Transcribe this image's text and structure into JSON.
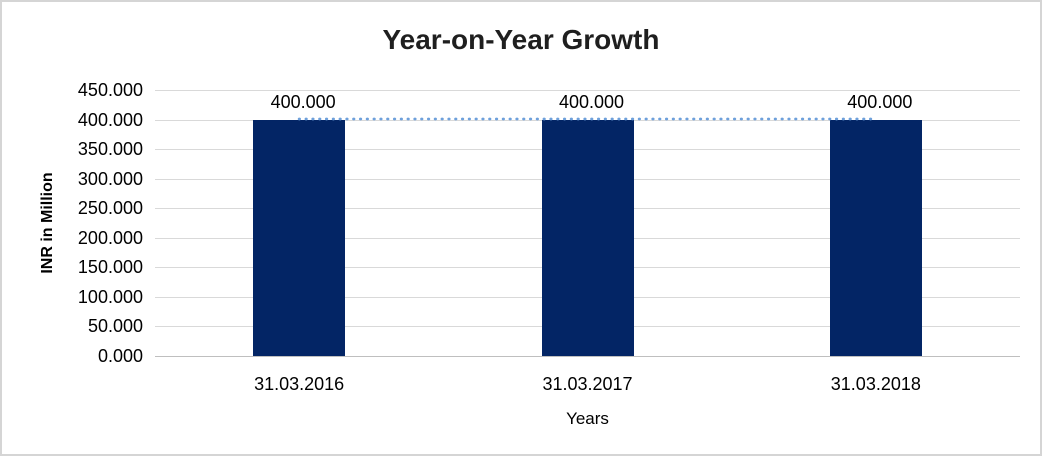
{
  "chart_data": {
    "type": "bar",
    "title": "Year-on-Year Growth",
    "xlabel": "Years",
    "ylabel": "INR in Million",
    "categories": [
      "31.03.2016",
      "31.03.2017",
      "31.03.2018"
    ],
    "series": [
      {
        "name": "INR in Million",
        "type": "bar",
        "values": [
          400.0,
          400.0,
          400.0
        ]
      },
      {
        "name": "Trend",
        "type": "line",
        "style": "dotted",
        "values": [
          400.0,
          400.0,
          400.0
        ]
      }
    ],
    "data_labels": [
      "400.000",
      "400.000",
      "400.000"
    ],
    "ylim": [
      0,
      450
    ],
    "ytick_step": 50,
    "ytick_labels": [
      "450.000",
      "400.000",
      "350.000",
      "300.000",
      "250.000",
      "200.000",
      "150.000",
      "100.000",
      "50.000",
      "0.000"
    ],
    "grid": true,
    "legend": "none",
    "colors": {
      "bar": "#032565",
      "trend_line": "#6EA0DB",
      "gridline": "#D9D9D9",
      "axis_line": "#BFBFBF",
      "text": "#000000",
      "title_text": "#1F1F1F",
      "frame_border": "#D5D5D5",
      "background": "#FFFFFF"
    }
  }
}
